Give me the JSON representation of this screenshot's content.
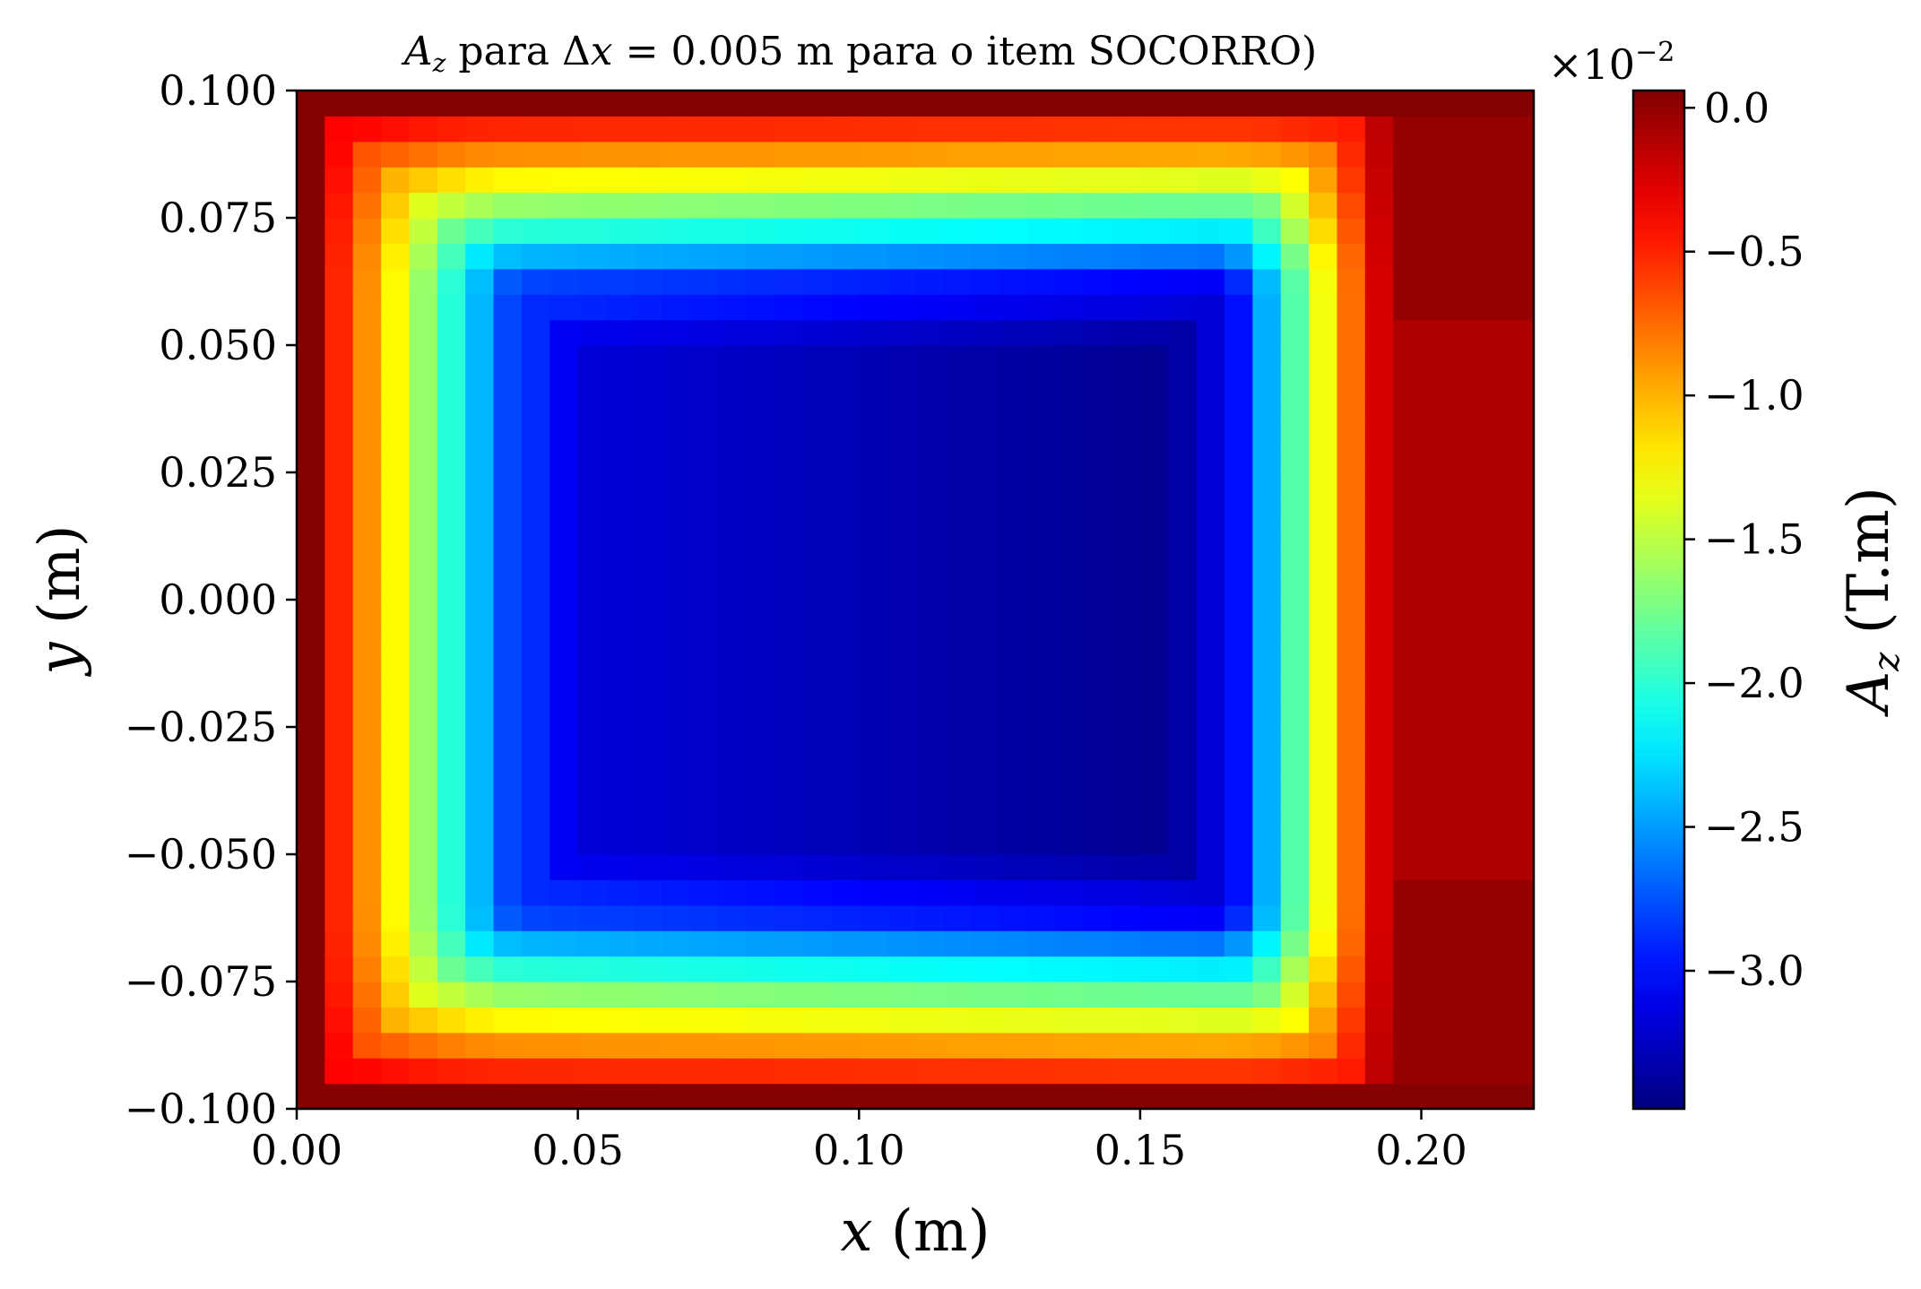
{
  "chart_data": {
    "type": "heatmap",
    "title": {
      "var_main": "A",
      "var_sub": "z",
      "mid": " para Δ",
      "var_x": "x",
      "rest": " = 0.005 m para o item SOCORRO)"
    },
    "xlabel": {
      "var": "x",
      "unit": " (m)"
    },
    "ylabel": {
      "var": "y",
      "unit": " (m)"
    },
    "xlim": [
      0.0,
      0.22
    ],
    "ylim": [
      -0.1,
      0.1
    ],
    "xticks": [
      0.0,
      0.05,
      0.1,
      0.15,
      0.2
    ],
    "xtick_labels": [
      "0.00",
      "0.05",
      "0.10",
      "0.15",
      "0.20"
    ],
    "yticks": [
      0.1,
      0.075,
      0.05,
      0.025,
      0.0,
      -0.025,
      -0.05,
      -0.075,
      -0.1
    ],
    "ytick_labels": [
      "0.100",
      "0.075",
      "0.050",
      "0.025",
      "0.000",
      "−0.025",
      "−0.050",
      "−0.075",
      "−0.100"
    ],
    "grid_dx": 0.005,
    "grid_dy": 0.005,
    "colormap": "jet",
    "colorbar": {
      "label_var": "A",
      "label_sub": "z",
      "label_unit": " (T.m)",
      "multiplier_base": "×10",
      "multiplier_exp": "−2",
      "vmin": -3.48,
      "vmax": 0.06,
      "ticks": [
        0.0,
        -0.5,
        -1.0,
        -1.5,
        -2.0,
        -2.5,
        -3.0
      ],
      "tick_labels": [
        "0.0",
        "−0.5",
        "−1.0",
        "−1.5",
        "−2.0",
        "−2.5",
        "−3.0"
      ]
    },
    "field_model": {
      "conductor_x": [
        0.04,
        0.165
      ],
      "conductor_y": [
        -0.06,
        0.06
      ],
      "inner_min_left": -3.15,
      "inner_min_right": -3.45,
      "boundary_value": 0.0,
      "right_region_from_x": 0.195
    }
  }
}
